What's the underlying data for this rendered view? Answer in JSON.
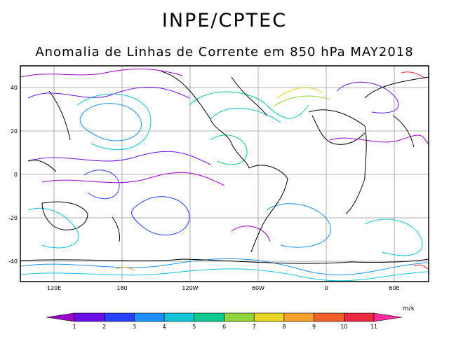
{
  "header": {
    "title": "INPE/CPTEC",
    "subtitle": "Anomalia de Linhas de Corrente em 850 hPa MAY2018"
  },
  "map": {
    "lat_labels": [
      "40",
      "20",
      "0",
      "-20",
      "-40"
    ],
    "lon_labels": [
      "120E",
      "180",
      "120W",
      "60W",
      "0",
      "60E"
    ]
  },
  "colorbar": {
    "unit": "m/s",
    "ticks": [
      "1",
      "2",
      "3",
      "4",
      "5",
      "6",
      "7",
      "8",
      "9",
      "10",
      "11"
    ],
    "colors": [
      "#9a00c8",
      "#6a0ee8",
      "#2840ff",
      "#1e90ff",
      "#12c3d6",
      "#10c98e",
      "#92d43c",
      "#e8d427",
      "#f4a02c",
      "#f0602a",
      "#e8283c",
      "#ff2ca0"
    ]
  }
}
